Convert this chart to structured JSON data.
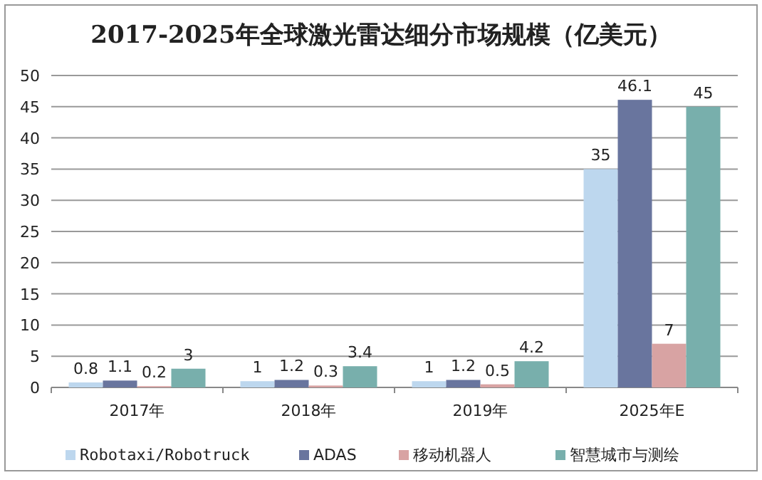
{
  "chart_data": {
    "type": "bar",
    "title": "2017-2025年全球激光雷达细分市场规模（亿美元）",
    "categories": [
      "2017年",
      "2018年",
      "2019年",
      "2025年E"
    ],
    "series": [
      {
        "name": "Robotaxi/Robotruck",
        "color": "#bdd7ee",
        "values": [
          0.8,
          1,
          1,
          35
        ]
      },
      {
        "name": "ADAS",
        "color": "#69759e",
        "values": [
          1.1,
          1.2,
          1.2,
          46.1
        ]
      },
      {
        "name": "移动机器人",
        "color": "#d8a3a3",
        "values": [
          0.2,
          0.3,
          0.5,
          7
        ]
      },
      {
        "name": "智慧城市与测绘",
        "color": "#78afac",
        "values": [
          3,
          3.4,
          4.2,
          45
        ]
      }
    ],
    "ylim": [
      0,
      50
    ],
    "yticks": [
      0,
      5,
      10,
      15,
      20,
      25,
      30,
      35,
      40,
      45,
      50
    ],
    "grid": "y",
    "data_labels": true,
    "legend": "bottom"
  }
}
